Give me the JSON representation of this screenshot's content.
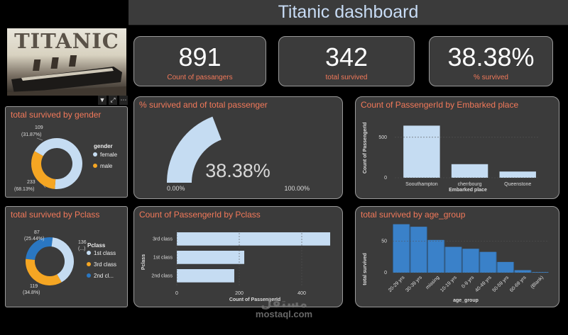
{
  "header": {
    "title": "Titanic dashboard"
  },
  "logo": {
    "text": "TITANIC"
  },
  "kpis": [
    {
      "value": "891",
      "label": "Count of passangers"
    },
    {
      "value": "342",
      "label": "total survived"
    },
    {
      "value": "38.38%",
      "label": "% survived"
    }
  ],
  "colors": {
    "light_blue": "#c5dcf2",
    "orange": "#f5a623",
    "blue": "#2a77c2",
    "accent": "#f2795a",
    "panel": "#3b3b3b"
  },
  "chart_data": [
    {
      "type": "pie",
      "title": "total survived by gender",
      "legend_title": "gender",
      "legend_position": "right",
      "slices": [
        {
          "name": "female",
          "value": 233,
          "label": "233",
          "pct": "(68.13%)",
          "color": "#c5dcf2"
        },
        {
          "name": "male",
          "value": 109,
          "label": "109",
          "pct": "(31.87%)",
          "color": "#f5a623"
        }
      ]
    },
    {
      "type": "gauge",
      "title": "% survived and of total passenger",
      "value": 38.38,
      "value_label": "38.38%",
      "min_label": "0.00%",
      "max_label": "100.00%"
    },
    {
      "type": "bar",
      "title": "Count of PassengerId by Embarked place",
      "categories": [
        "Soouthampton",
        "cherrbourg",
        "Queenstone"
      ],
      "values": [
        644,
        168,
        77
      ],
      "xlabel": "Embarked place",
      "ylabel": "Count of PassengerId",
      "yticks": [
        "0",
        "500"
      ],
      "ylim": [
        0,
        700
      ]
    },
    {
      "type": "pie",
      "title": "total survived by Pclass",
      "legend_title": "Pclass",
      "legend_position": "right",
      "slices": [
        {
          "name": "1st class",
          "value": 136,
          "label": "136",
          "pct": "(...)",
          "color": "#c5dcf2"
        },
        {
          "name": "3rd class",
          "value": 119,
          "label": "119",
          "pct": "(34.8%)",
          "color": "#f5a623"
        },
        {
          "name": "2nd cl...",
          "value": 87,
          "label": "87",
          "pct": "(25.44%)",
          "color": "#2a77c2"
        }
      ]
    },
    {
      "type": "bar",
      "orientation": "horizontal",
      "title": "Count of PassengerId by Pclass",
      "categories": [
        "3rd class",
        "1st class",
        "2nd class"
      ],
      "values": [
        491,
        216,
        184
      ],
      "xlabel": "Count of PassengerId",
      "ylabel": "Pclass",
      "xticks": [
        "0",
        "200",
        "400"
      ],
      "xlim": [
        0,
        500
      ]
    },
    {
      "type": "area",
      "title": "total survived by age_group",
      "categories": [
        "20-29 yrs",
        "30-39 yrs",
        "missing",
        "10-19 yrs",
        "0-9 yrs",
        "40-49 yrs",
        "50-59 yrs",
        "60-69 yrs",
        "(Blank)"
      ],
      "values": [
        77,
        73,
        52,
        41,
        38,
        33,
        17,
        4,
        1
      ],
      "xlabel": "age_group",
      "ylabel": "total survived",
      "yticks": [
        "0",
        "50"
      ],
      "ylim": [
        0,
        80
      ]
    }
  ],
  "watermark": {
    "arabic": "مستقل",
    "latin": "mostaql.com"
  }
}
